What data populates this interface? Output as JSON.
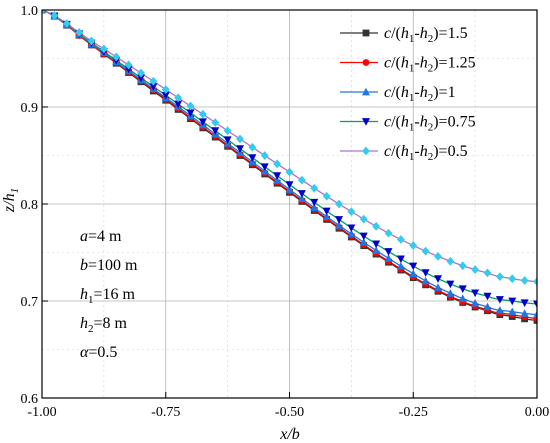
{
  "chart_data": {
    "type": "line",
    "xlabel": "x/b",
    "ylabel": "z/h1",
    "xlim": [
      -1.0,
      0.0
    ],
    "ylim": [
      0.6,
      1.0
    ],
    "grid": true,
    "legend_position": "top-right",
    "x_ticks": [
      -1.0,
      -0.75,
      -0.5,
      -0.25,
      0.0
    ],
    "x_tick_labels": [
      "-1.00",
      "-0.75",
      "-0.50",
      "-0.25",
      "0.00"
    ],
    "y_ticks": [
      0.6,
      0.7,
      0.8,
      0.9,
      1.0
    ],
    "y_tick_labels": [
      "0.6",
      "0.7",
      "0.8",
      "0.9",
      "1.0"
    ],
    "annotations": [
      "a=4 m",
      "b=100 m",
      "h1=16 m",
      "h2=8 m",
      "α=0.5"
    ],
    "series": [
      {
        "name": "c/(h1-h2)=1.5",
        "color": "#333333",
        "marker": "square",
        "x": [
          -1.0,
          -0.9,
          -0.8,
          -0.7,
          -0.6,
          -0.5,
          -0.4,
          -0.3,
          -0.2,
          -0.1,
          -0.05,
          0.0
        ],
        "y": [
          1.0,
          0.964,
          0.926,
          0.888,
          0.85,
          0.812,
          0.775,
          0.74,
          0.71,
          0.69,
          0.684,
          0.68
        ]
      },
      {
        "name": "c/(h1-h2)=1.25",
        "color": "#ff0000",
        "marker": "circle",
        "x": [
          -1.0,
          -0.9,
          -0.8,
          -0.7,
          -0.6,
          -0.5,
          -0.4,
          -0.3,
          -0.2,
          -0.1,
          -0.05,
          0.0
        ],
        "y": [
          1.0,
          0.964,
          0.927,
          0.889,
          0.851,
          0.813,
          0.776,
          0.741,
          0.711,
          0.691,
          0.686,
          0.682
        ]
      },
      {
        "name": "c/(h1-h2)=1",
        "color": "#1f77e0",
        "marker": "triangle-up",
        "x": [
          -1.0,
          -0.9,
          -0.8,
          -0.7,
          -0.6,
          -0.5,
          -0.4,
          -0.3,
          -0.2,
          -0.1,
          -0.05,
          0.0
        ],
        "y": [
          1.0,
          0.965,
          0.928,
          0.891,
          0.853,
          0.815,
          0.778,
          0.744,
          0.714,
          0.694,
          0.689,
          0.686
        ]
      },
      {
        "name": "c/(h1-h2)=0.75",
        "color": "#0000cc",
        "line_color": "#00a060",
        "marker": "triangle-down",
        "x": [
          -1.0,
          -0.9,
          -0.8,
          -0.7,
          -0.6,
          -0.5,
          -0.4,
          -0.3,
          -0.2,
          -0.1,
          -0.05,
          0.0
        ],
        "y": [
          1.0,
          0.966,
          0.93,
          0.894,
          0.857,
          0.82,
          0.784,
          0.751,
          0.723,
          0.705,
          0.7,
          0.697
        ]
      },
      {
        "name": "c/(h1-h2)=0.5",
        "color": "#33ccee",
        "line_color": "#b070d0",
        "marker": "diamond",
        "x": [
          -1.0,
          -0.9,
          -0.8,
          -0.7,
          -0.6,
          -0.5,
          -0.4,
          -0.3,
          -0.2,
          -0.1,
          -0.05,
          0.0
        ],
        "y": [
          1.0,
          0.968,
          0.935,
          0.901,
          0.867,
          0.833,
          0.8,
          0.77,
          0.746,
          0.729,
          0.723,
          0.72
        ]
      }
    ]
  }
}
